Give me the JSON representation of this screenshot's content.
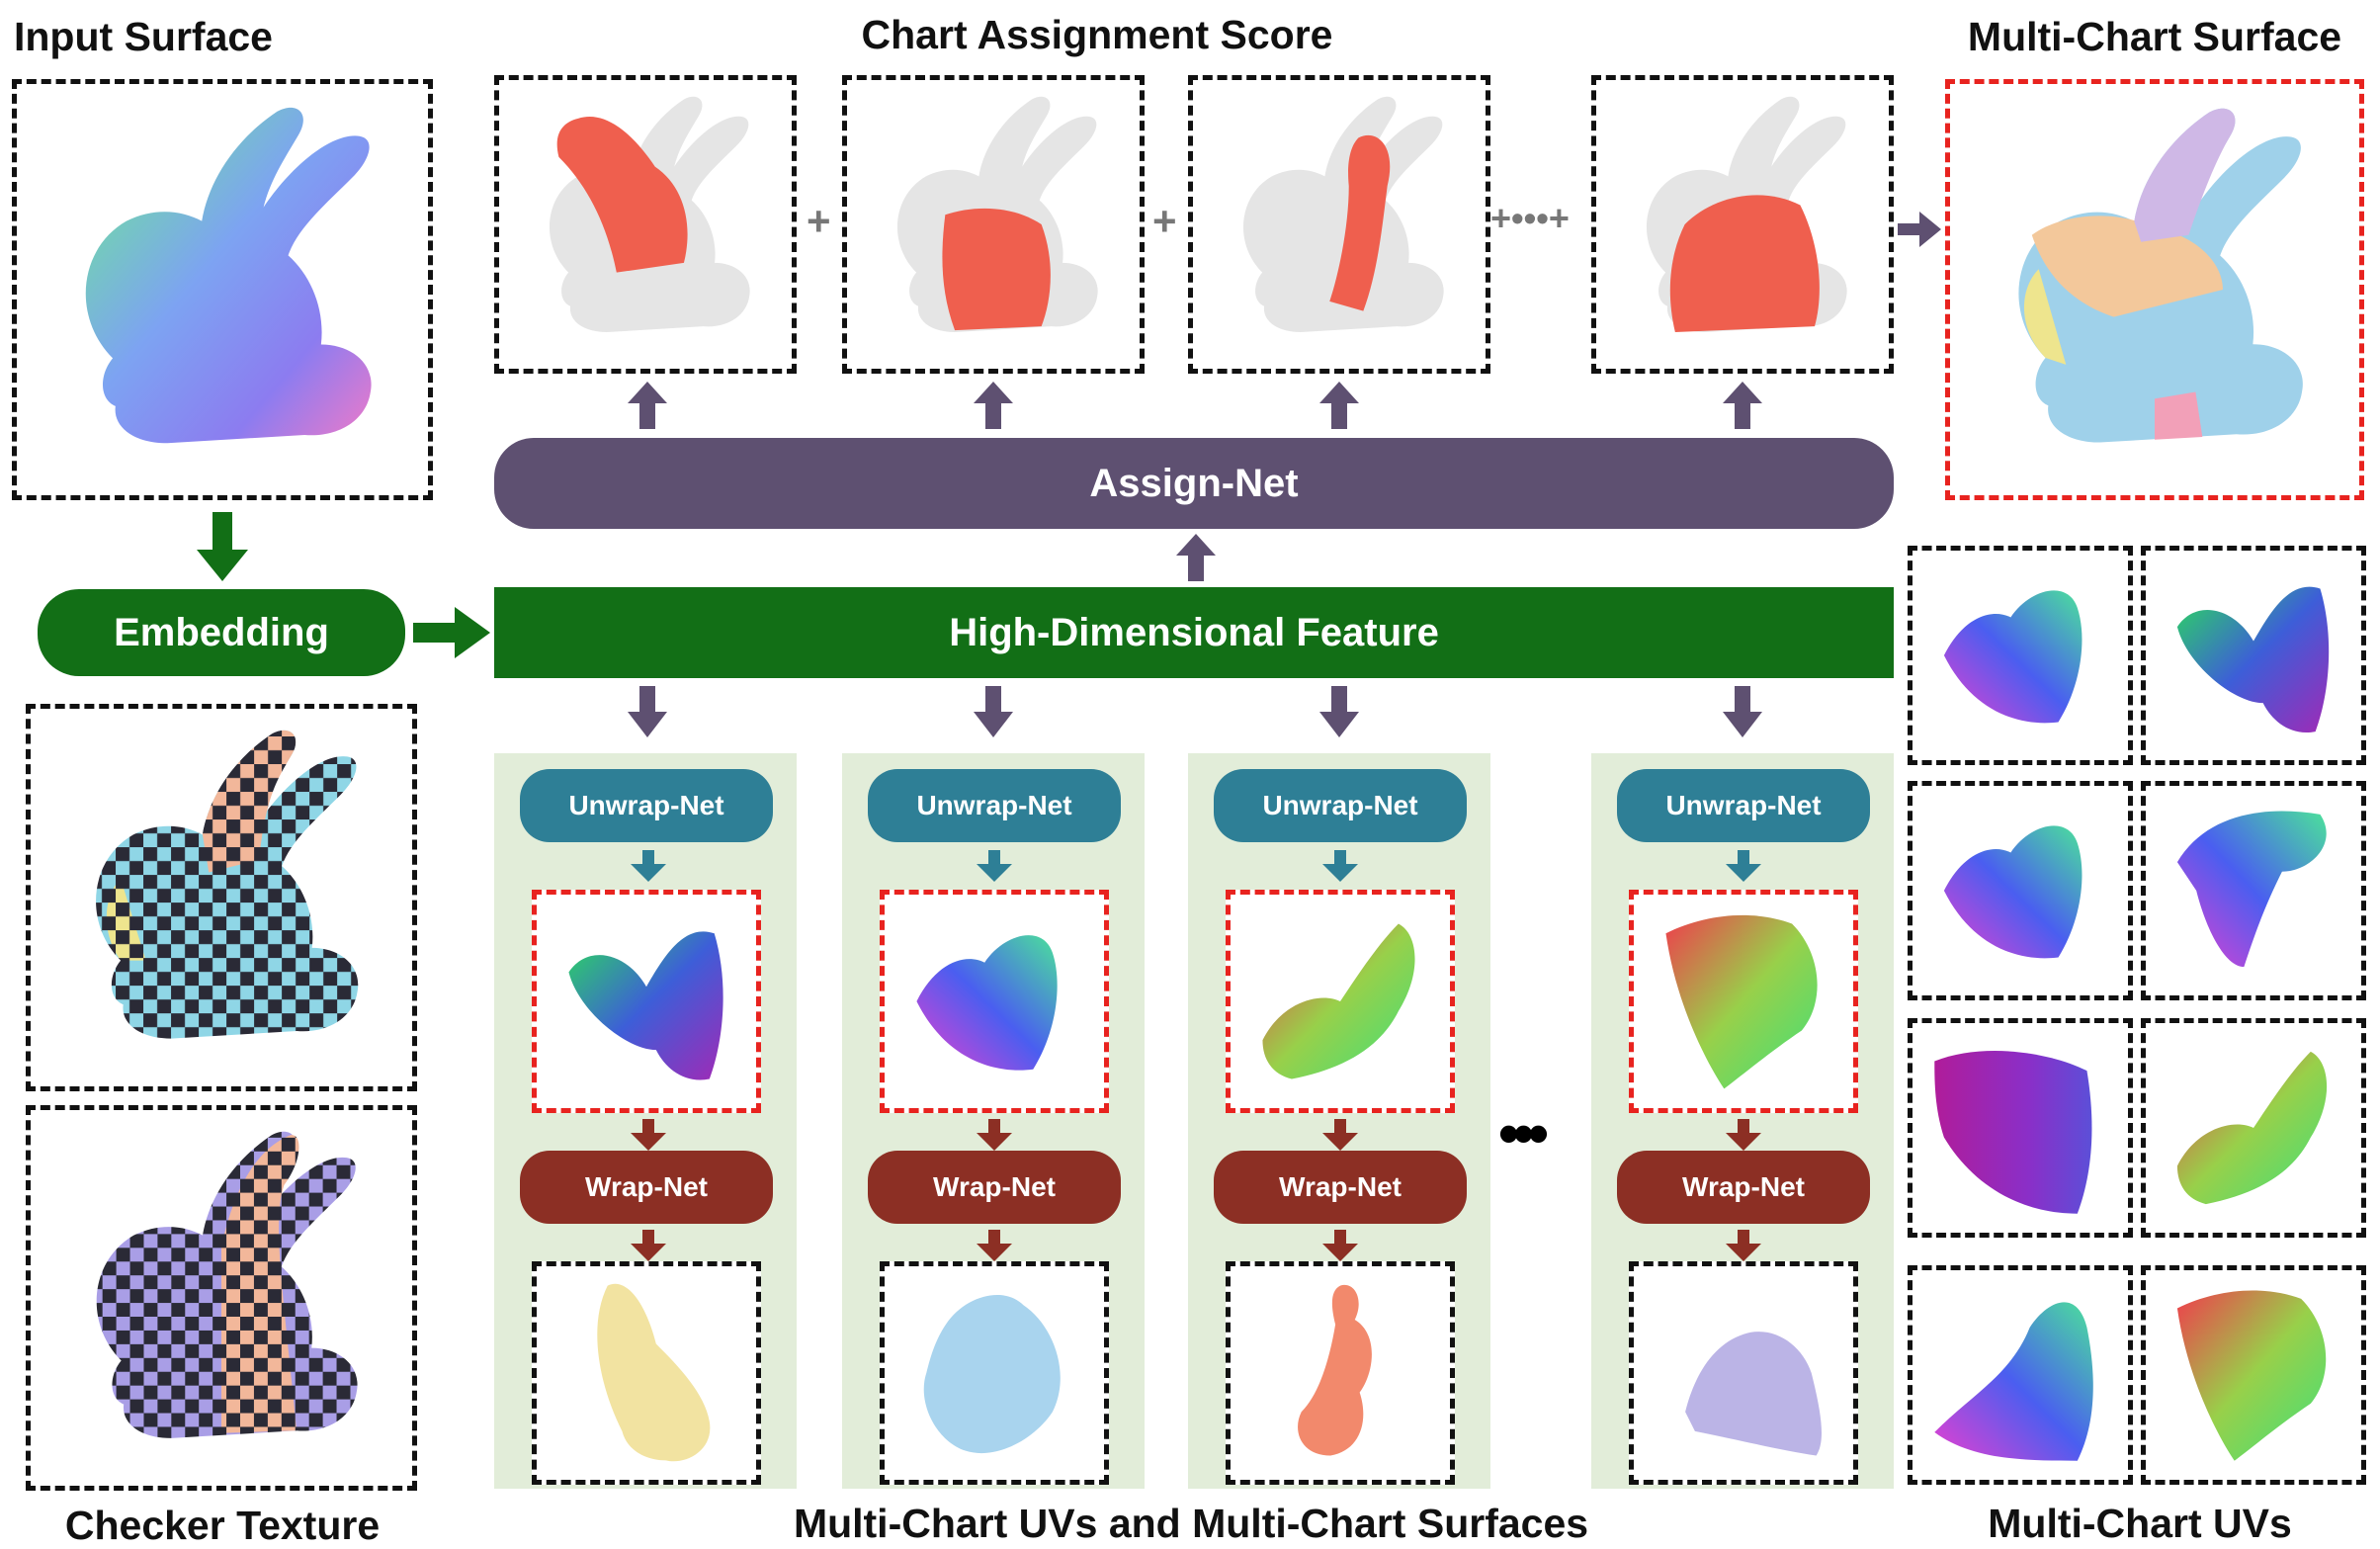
{
  "titles": {
    "input_surface": "Input Surface",
    "chart_assignment_score": "Chart Assignment Score",
    "multi_chart_surface": "Multi-Chart Surface",
    "checker_texture": "Checker Texture",
    "bottom_caption": "Multi-Chart UVs and Multi-Chart Surfaces",
    "multi_chart_uvs": "Multi-Chart UVs"
  },
  "blocks": {
    "assign_net": "Assign-Net",
    "high_dim_feature": "High-Dimensional Feature",
    "embedding": "Embedding",
    "unwrap_net": "Unwrap-Net",
    "wrap_net": "Wrap-Net"
  },
  "operators": {
    "plus": "+",
    "ellipsis": "•••"
  },
  "colors": {
    "assign": "#5e5071",
    "feature": "#126f16",
    "unwrap": "#2e7f96",
    "wrap": "#8c2f24",
    "panel": "#e2edd9",
    "highlight_red": "#e8231f",
    "chart_red": "#ef5f4e"
  }
}
